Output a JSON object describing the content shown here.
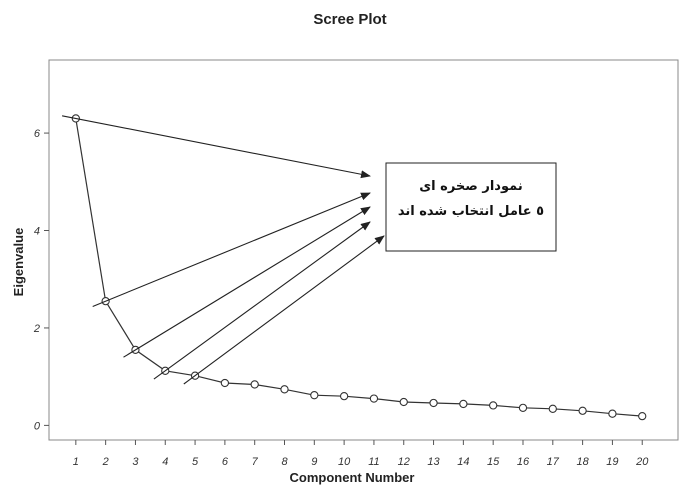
{
  "chart_data": {
    "type": "line",
    "title": "Scree Plot",
    "xlabel": "Component Number",
    "ylabel": "Eigenvalue",
    "xlim": [
      0.1,
      21.2
    ],
    "ylim": [
      -0.3,
      7.5
    ],
    "x_ticks": [
      1,
      2,
      3,
      4,
      5,
      6,
      7,
      8,
      9,
      10,
      11,
      12,
      13,
      14,
      15,
      16,
      17,
      18,
      19,
      20
    ],
    "y_ticks": [
      0,
      2,
      4,
      6
    ],
    "series": [
      {
        "x": [
          1,
          2,
          3,
          4,
          5,
          6,
          7,
          8,
          9,
          10,
          11,
          12,
          13,
          14,
          15,
          16,
          17,
          18,
          19,
          20
        ],
        "values": [
          6.3,
          2.55,
          1.55,
          1.12,
          1.02,
          0.87,
          0.84,
          0.74,
          0.62,
          0.6,
          0.55,
          0.48,
          0.46,
          0.44,
          0.41,
          0.36,
          0.34,
          0.3,
          0.24,
          0.19
        ]
      }
    ],
    "grid": false,
    "annotation": {
      "lines": [
        "نمودار صخره ای",
        "٥ عامل انتخاب شده اند"
      ],
      "points_to_components": [
        1,
        2,
        3,
        4,
        5
      ]
    }
  }
}
